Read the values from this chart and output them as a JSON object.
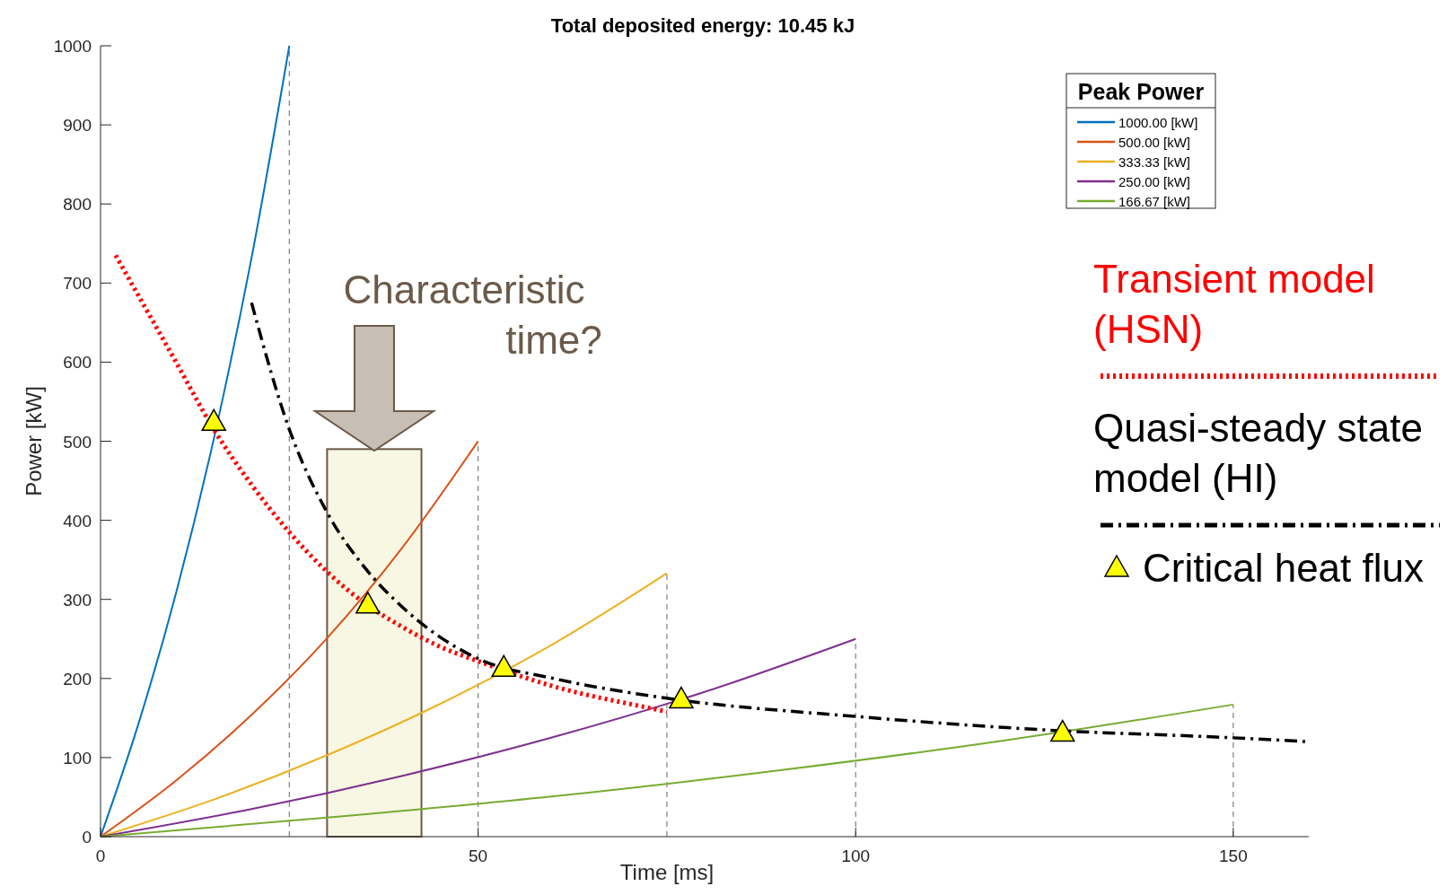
{
  "chart_data": {
    "type": "line",
    "title": "Total deposited energy: 10.45 kJ",
    "xlabel": "Time [ms]",
    "ylabel": "Power [kW]",
    "legend_title": "Peak Power",
    "legend": "top right",
    "xlim": [
      0,
      160
    ],
    "xticks": [
      0,
      50,
      100,
      150
    ],
    "ylim": [
      0,
      1000
    ],
    "yticks": [
      0,
      100,
      200,
      300,
      400,
      500,
      600,
      700,
      800,
      900,
      1000
    ],
    "annotations": [
      "Characteristic time?"
    ],
    "bands": [
      {
        "axis": "x",
        "from": 30,
        "to": 42.5,
        "color": "#f5f5dc"
      }
    ],
    "ref_lines": [
      {
        "axis": "x",
        "value": 25,
        "line_style": "dashed",
        "color": "#808080"
      },
      {
        "axis": "x",
        "value": 50,
        "line_style": "dashed",
        "color": "#808080"
      },
      {
        "axis": "x",
        "value": 75,
        "line_style": "dashed",
        "color": "#808080"
      },
      {
        "axis": "x",
        "value": 100,
        "line_style": "dashed",
        "color": "#808080"
      },
      {
        "axis": "x",
        "value": 150,
        "line_style": "dashed",
        "color": "#808080"
      }
    ],
    "series": [
      {
        "name": "1000.00 [kW]",
        "color": "#0072bd",
        "x": [
          0,
          5,
          10,
          15,
          20,
          25
        ],
        "values": [
          0,
          142,
          308,
          503,
          732,
          1000
        ]
      },
      {
        "name": "500.00 [kW]",
        "color": "#d95319",
        "x": [
          0,
          10,
          20,
          30,
          40,
          50
        ],
        "values": [
          0,
          71,
          154,
          251,
          366,
          500
        ]
      },
      {
        "name": "333.33 [kW]",
        "color": "#edb120",
        "x": [
          0,
          15,
          30,
          45,
          60,
          75
        ],
        "values": [
          0,
          47,
          103,
          168,
          244,
          333
        ]
      },
      {
        "name": "250.00 [kW]",
        "color": "#7e2f8e",
        "x": [
          0,
          20,
          40,
          60,
          80,
          100
        ],
        "values": [
          0,
          35,
          77,
          126,
          183,
          250
        ]
      },
      {
        "name": "166.67 [kW]",
        "color": "#77ac30",
        "x": [
          0,
          30,
          60,
          90,
          120,
          150
        ],
        "values": [
          0,
          24,
          51,
          84,
          122,
          167
        ]
      },
      {
        "name": "Transient model (HSN)",
        "color": "#ff0000",
        "line_style": "dotted",
        "x": [
          2,
          10,
          15,
          20,
          25,
          30,
          35,
          40,
          45,
          50,
          55,
          60,
          65,
          70,
          75
        ],
        "values": [
          735,
          600,
          515,
          445,
          385,
          335,
          295,
          265,
          240,
          222,
          205,
          190,
          178,
          168,
          158
        ]
      },
      {
        "name": "Quasi-steady state model (HI)",
        "color": "#000000",
        "line_style": "dashdot",
        "x": [
          20,
          25,
          30,
          35,
          40,
          50,
          60,
          75,
          100,
          125,
          150,
          160
        ],
        "values": [
          675,
          515,
          410,
          340,
          290,
          225,
          200,
          175,
          152,
          135,
          125,
          120
        ]
      },
      {
        "name": "Critical heat flux",
        "type": "scatter",
        "marker": "triangle",
        "color": "#ffff00",
        "x": [
          15,
          35.4,
          53.4,
          76.9,
          127.4
        ],
        "values": [
          524,
          293,
          213,
          173,
          131
        ]
      }
    ]
  }
}
